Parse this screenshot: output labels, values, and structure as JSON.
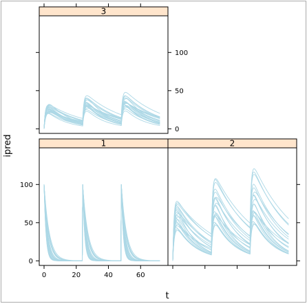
{
  "chart_data": {
    "type": "line",
    "xlabel": "t",
    "ylabel": "ipred",
    "x_range": [
      -3,
      77
    ],
    "y_range": [
      -6,
      148
    ],
    "x_ticks": [
      0,
      20,
      40,
      60
    ],
    "y_ticks": [
      0,
      50,
      100
    ],
    "line_color": "#add8e6",
    "strip_color": "#ffe5cc",
    "panels": [
      {
        "strip": "1",
        "model": "iv_bolus",
        "doses_at": [
          0,
          24,
          48
        ],
        "t_end": 72,
        "n_subjects": 20,
        "peak": [
          100,
          100
        ],
        "elimination_rate": [
          0.3,
          0.9
        ]
      },
      {
        "strip": "2",
        "model": "first_order_absorption",
        "doses_at": [
          0,
          24,
          48
        ],
        "t_end": 72,
        "n_subjects": 20,
        "first_peak": [
          40,
          78
        ],
        "last_peak": [
          78,
          140
        ],
        "trough_at_24": [
          22,
          55
        ]
      },
      {
        "strip": "3",
        "model": "first_order_absorption",
        "doses_at": [
          0,
          24,
          48
        ],
        "t_end": 72,
        "n_subjects": 20,
        "first_peak": [
          20,
          32
        ],
        "last_peak": [
          48,
          72
        ],
        "trough_at_24": [
          14,
          24
        ]
      }
    ]
  }
}
